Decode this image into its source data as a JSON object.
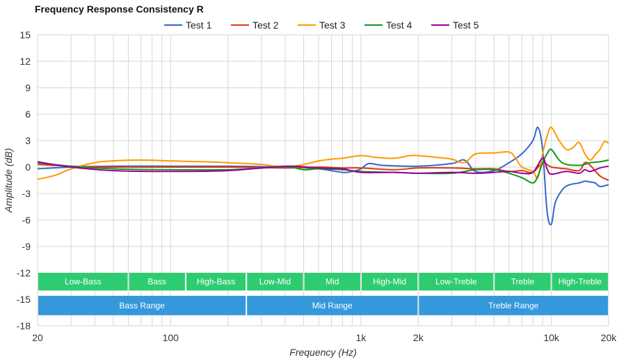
{
  "chart_data": {
    "type": "line",
    "title": "Frequency Response Consistency R",
    "xlabel": "Frequency (Hz)",
    "ylabel": "Amplitude (dB)",
    "xscale": "log",
    "xlim": [
      20,
      20000
    ],
    "ylim": [
      -18,
      15
    ],
    "y_ticks": [
      15,
      12,
      9,
      6,
      3,
      0,
      -3,
      -6,
      -9,
      -12,
      -15,
      -18
    ],
    "x_tick_labels": [
      {
        "value": 20,
        "label": "20"
      },
      {
        "value": 100,
        "label": "100"
      },
      {
        "value": 1000,
        "label": "1k"
      },
      {
        "value": 2000,
        "label": "2k"
      },
      {
        "value": 10000,
        "label": "10k"
      },
      {
        "value": 20000,
        "label": "20k"
      }
    ],
    "grid": true,
    "legend_position": "top-center",
    "series": [
      {
        "name": "Test 1",
        "color": "#3366cc",
        "points": [
          [
            20,
            -0.2
          ],
          [
            30,
            0.0
          ],
          [
            50,
            0.1
          ],
          [
            100,
            0.1
          ],
          [
            200,
            0.1
          ],
          [
            400,
            0.0
          ],
          [
            600,
            -0.2
          ],
          [
            800,
            -0.6
          ],
          [
            900,
            -0.5
          ],
          [
            1000,
            -0.2
          ],
          [
            1100,
            0.4
          ],
          [
            1300,
            0.2
          ],
          [
            2000,
            0.1
          ],
          [
            3000,
            0.4
          ],
          [
            3500,
            0.8
          ],
          [
            4000,
            -0.5
          ],
          [
            5000,
            -0.4
          ],
          [
            6000,
            0.5
          ],
          [
            7000,
            1.5
          ],
          [
            8000,
            3.0
          ],
          [
            8500,
            4.5
          ],
          [
            9000,
            2.0
          ],
          [
            9500,
            -5.0
          ],
          [
            10000,
            -6.5
          ],
          [
            10500,
            -4.0
          ],
          [
            11500,
            -2.5
          ],
          [
            12500,
            -2.0
          ],
          [
            14000,
            -1.8
          ],
          [
            15000,
            -1.6
          ],
          [
            16000,
            -1.7
          ],
          [
            17000,
            -1.8
          ],
          [
            18000,
            -2.2
          ],
          [
            20000,
            -2.0
          ]
        ]
      },
      {
        "name": "Test 2",
        "color": "#dc3912",
        "points": [
          [
            20,
            0.3
          ],
          [
            30,
            0.1
          ],
          [
            50,
            0.0
          ],
          [
            100,
            0.0
          ],
          [
            200,
            0.0
          ],
          [
            400,
            -0.1
          ],
          [
            600,
            0.0
          ],
          [
            800,
            -0.1
          ],
          [
            1000,
            -0.1
          ],
          [
            1500,
            -0.3
          ],
          [
            2000,
            -0.1
          ],
          [
            3000,
            -0.1
          ],
          [
            4000,
            -0.2
          ],
          [
            5000,
            -0.2
          ],
          [
            6000,
            -0.5
          ],
          [
            7000,
            -0.4
          ],
          [
            8000,
            -0.6
          ],
          [
            9000,
            0.5
          ],
          [
            10000,
            0.0
          ],
          [
            12000,
            -0.2
          ],
          [
            14000,
            -0.4
          ],
          [
            15000,
            0.5
          ],
          [
            16000,
            0.2
          ],
          [
            18000,
            -1.0
          ],
          [
            20000,
            -1.5
          ]
        ]
      },
      {
        "name": "Test 3",
        "color": "#ff9900",
        "points": [
          [
            20,
            -1.4
          ],
          [
            25,
            -0.9
          ],
          [
            30,
            -0.2
          ],
          [
            40,
            0.5
          ],
          [
            50,
            0.7
          ],
          [
            70,
            0.8
          ],
          [
            100,
            0.7
          ],
          [
            150,
            0.6
          ],
          [
            200,
            0.5
          ],
          [
            300,
            0.3
          ],
          [
            400,
            0.0
          ],
          [
            500,
            0.3
          ],
          [
            600,
            0.7
          ],
          [
            700,
            0.9
          ],
          [
            800,
            1.0
          ],
          [
            1000,
            1.3
          ],
          [
            1200,
            1.1
          ],
          [
            1500,
            1.0
          ],
          [
            1800,
            1.3
          ],
          [
            2000,
            1.3
          ],
          [
            2500,
            1.1
          ],
          [
            3000,
            0.9
          ],
          [
            3500,
            0.5
          ],
          [
            4000,
            1.5
          ],
          [
            5000,
            1.6
          ],
          [
            6000,
            1.7
          ],
          [
            6500,
            1.0
          ],
          [
            7000,
            0.0
          ],
          [
            8000,
            -0.5
          ],
          [
            8500,
            -1.2
          ],
          [
            9000,
            1.5
          ],
          [
            9500,
            3.5
          ],
          [
            10000,
            4.5
          ],
          [
            11000,
            3.0
          ],
          [
            12000,
            2.0
          ],
          [
            13000,
            2.2
          ],
          [
            14000,
            2.8
          ],
          [
            15000,
            1.5
          ],
          [
            16000,
            0.8
          ],
          [
            17000,
            1.4
          ],
          [
            18000,
            2.0
          ],
          [
            19000,
            2.9
          ],
          [
            20000,
            2.7
          ]
        ]
      },
      {
        "name": "Test 4",
        "color": "#109618",
        "points": [
          [
            20,
            0.5
          ],
          [
            30,
            0.1
          ],
          [
            50,
            -0.2
          ],
          [
            100,
            -0.3
          ],
          [
            200,
            -0.3
          ],
          [
            400,
            0.0
          ],
          [
            500,
            -0.3
          ],
          [
            600,
            -0.2
          ],
          [
            800,
            -0.3
          ],
          [
            1000,
            -0.5
          ],
          [
            1500,
            -0.6
          ],
          [
            2000,
            -0.7
          ],
          [
            3000,
            -0.7
          ],
          [
            4000,
            -0.3
          ],
          [
            5000,
            -0.3
          ],
          [
            6000,
            -0.7
          ],
          [
            7000,
            -1.2
          ],
          [
            8000,
            -1.8
          ],
          [
            8500,
            -1.0
          ],
          [
            9000,
            0.5
          ],
          [
            9500,
            1.5
          ],
          [
            10000,
            2.0
          ],
          [
            11000,
            0.8
          ],
          [
            12000,
            0.3
          ],
          [
            14000,
            0.2
          ],
          [
            15000,
            0.3
          ],
          [
            16000,
            0.5
          ],
          [
            18000,
            0.6
          ],
          [
            20000,
            0.8
          ]
        ]
      },
      {
        "name": "Test 5",
        "color": "#990099",
        "points": [
          [
            20,
            0.6
          ],
          [
            30,
            0.0
          ],
          [
            50,
            -0.4
          ],
          [
            100,
            -0.5
          ],
          [
            200,
            -0.4
          ],
          [
            400,
            0.1
          ],
          [
            600,
            -0.1
          ],
          [
            800,
            -0.2
          ],
          [
            1000,
            -0.6
          ],
          [
            1500,
            -0.6
          ],
          [
            2000,
            -0.7
          ],
          [
            3000,
            -0.6
          ],
          [
            4000,
            -0.7
          ],
          [
            5000,
            -0.6
          ],
          [
            6000,
            -0.5
          ],
          [
            7000,
            -0.7
          ],
          [
            8000,
            -0.6
          ],
          [
            9000,
            1.0
          ],
          [
            9500,
            -0.2
          ],
          [
            10000,
            -0.8
          ],
          [
            12000,
            -0.5
          ],
          [
            14000,
            -0.7
          ],
          [
            15000,
            -0.3
          ],
          [
            16000,
            -0.5
          ],
          [
            18000,
            -0.1
          ],
          [
            20000,
            0.1
          ]
        ]
      }
    ],
    "range_bands": {
      "top": [
        {
          "label": "Low-Bass",
          "from": 20,
          "to": 60
        },
        {
          "label": "Bass",
          "from": 60,
          "to": 120
        },
        {
          "label": "High-Bass",
          "from": 120,
          "to": 250
        },
        {
          "label": "Low-Mid",
          "from": 250,
          "to": 500
        },
        {
          "label": "Mid",
          "from": 500,
          "to": 1000
        },
        {
          "label": "High-Mid",
          "from": 1000,
          "to": 2000
        },
        {
          "label": "Low-Treble",
          "from": 2000,
          "to": 5000
        },
        {
          "label": "Treble",
          "from": 5000,
          "to": 10000
        },
        {
          "label": "High-Treble",
          "from": 10000,
          "to": 20000
        }
      ],
      "bottom": [
        {
          "label": "Bass Range",
          "from": 20,
          "to": 250
        },
        {
          "label": "Mid Range",
          "from": 250,
          "to": 2000
        },
        {
          "label": "Treble Range",
          "from": 2000,
          "to": 20000
        }
      ],
      "top_color": "#2ecc71",
      "bottom_color": "#3498db",
      "top_y": [
        -14.0,
        -12.0
      ],
      "bottom_y": [
        -16.8,
        -14.6
      ]
    }
  }
}
